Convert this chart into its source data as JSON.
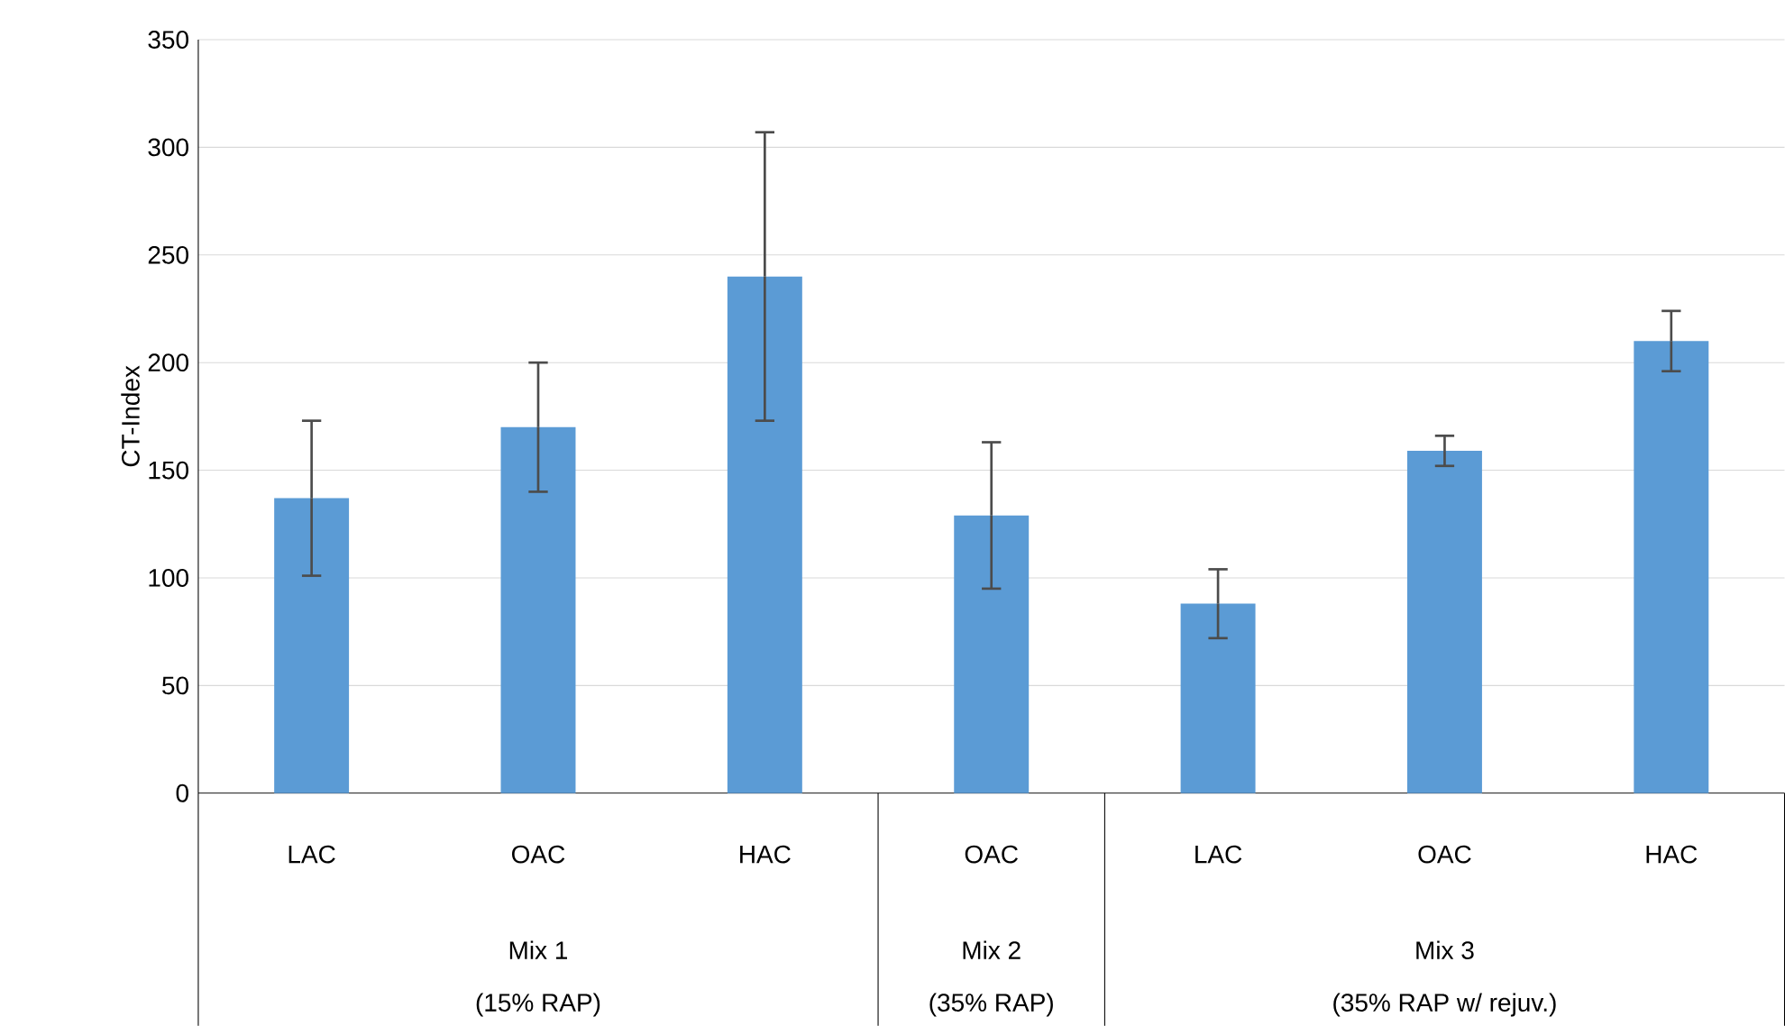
{
  "chart_data": {
    "type": "bar",
    "ylabel": "CT-Index",
    "categories": [
      "LAC",
      "OAC",
      "HAC",
      "OAC",
      "LAC",
      "OAC",
      "HAC"
    ],
    "values": [
      137,
      170,
      240,
      129,
      88,
      159,
      210
    ],
    "errors": [
      36,
      30,
      67,
      34,
      16,
      7,
      14
    ],
    "color": "#5b9bd5",
    "ylim": [
      0,
      350
    ],
    "yticks": [
      0,
      50,
      100,
      150,
      200,
      250,
      300,
      350
    ],
    "grid": "y",
    "annotations": [
      "Mix 1",
      "(15% RAP)",
      "Mix 2",
      "(35% RAP)",
      "Mix 3",
      "(35% RAP w/ rejuv.)"
    ]
  }
}
